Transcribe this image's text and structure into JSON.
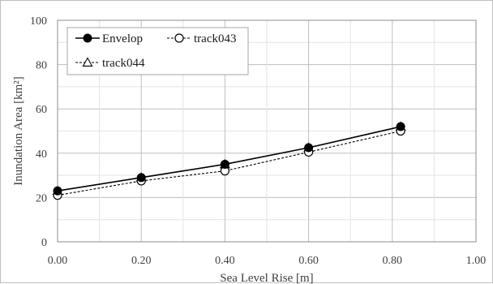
{
  "chart_data": {
    "type": "line",
    "title": "",
    "xlabel": "Sea Level Rise [m]",
    "ylabel": "Inundation Area [km²]",
    "xlim": [
      0,
      1.0
    ],
    "ylim": [
      0,
      100
    ],
    "x_ticks": [
      "0.00",
      "0.20",
      "0.40",
      "0.60",
      "0.80",
      "1.00"
    ],
    "y_ticks": [
      "0",
      "20",
      "40",
      "60",
      "80",
      "100"
    ],
    "grid": true,
    "legend_position": "top-left",
    "series": [
      {
        "name": "Envelop",
        "marker": "filled-circle",
        "line": "solid",
        "color": "#000000",
        "x": [
          0.0,
          0.2,
          0.4,
          0.6,
          0.82
        ],
        "y": [
          23.0,
          29.0,
          35.0,
          42.5,
          52.0
        ]
      },
      {
        "name": "track043",
        "marker": "open-circle",
        "line": "dotted",
        "color": "#000000",
        "x": [
          0.0,
          0.2,
          0.4,
          0.6,
          0.82
        ],
        "y": [
          21.0,
          27.5,
          32.0,
          40.5,
          50.0
        ]
      },
      {
        "name": "track044",
        "marker": "open-triangle",
        "line": "dotted",
        "color": "#000000",
        "x": [
          0.0,
          0.2,
          0.4,
          0.6,
          0.82
        ],
        "y": [
          23.0,
          29.0,
          35.0,
          42.5,
          52.0
        ]
      }
    ]
  }
}
